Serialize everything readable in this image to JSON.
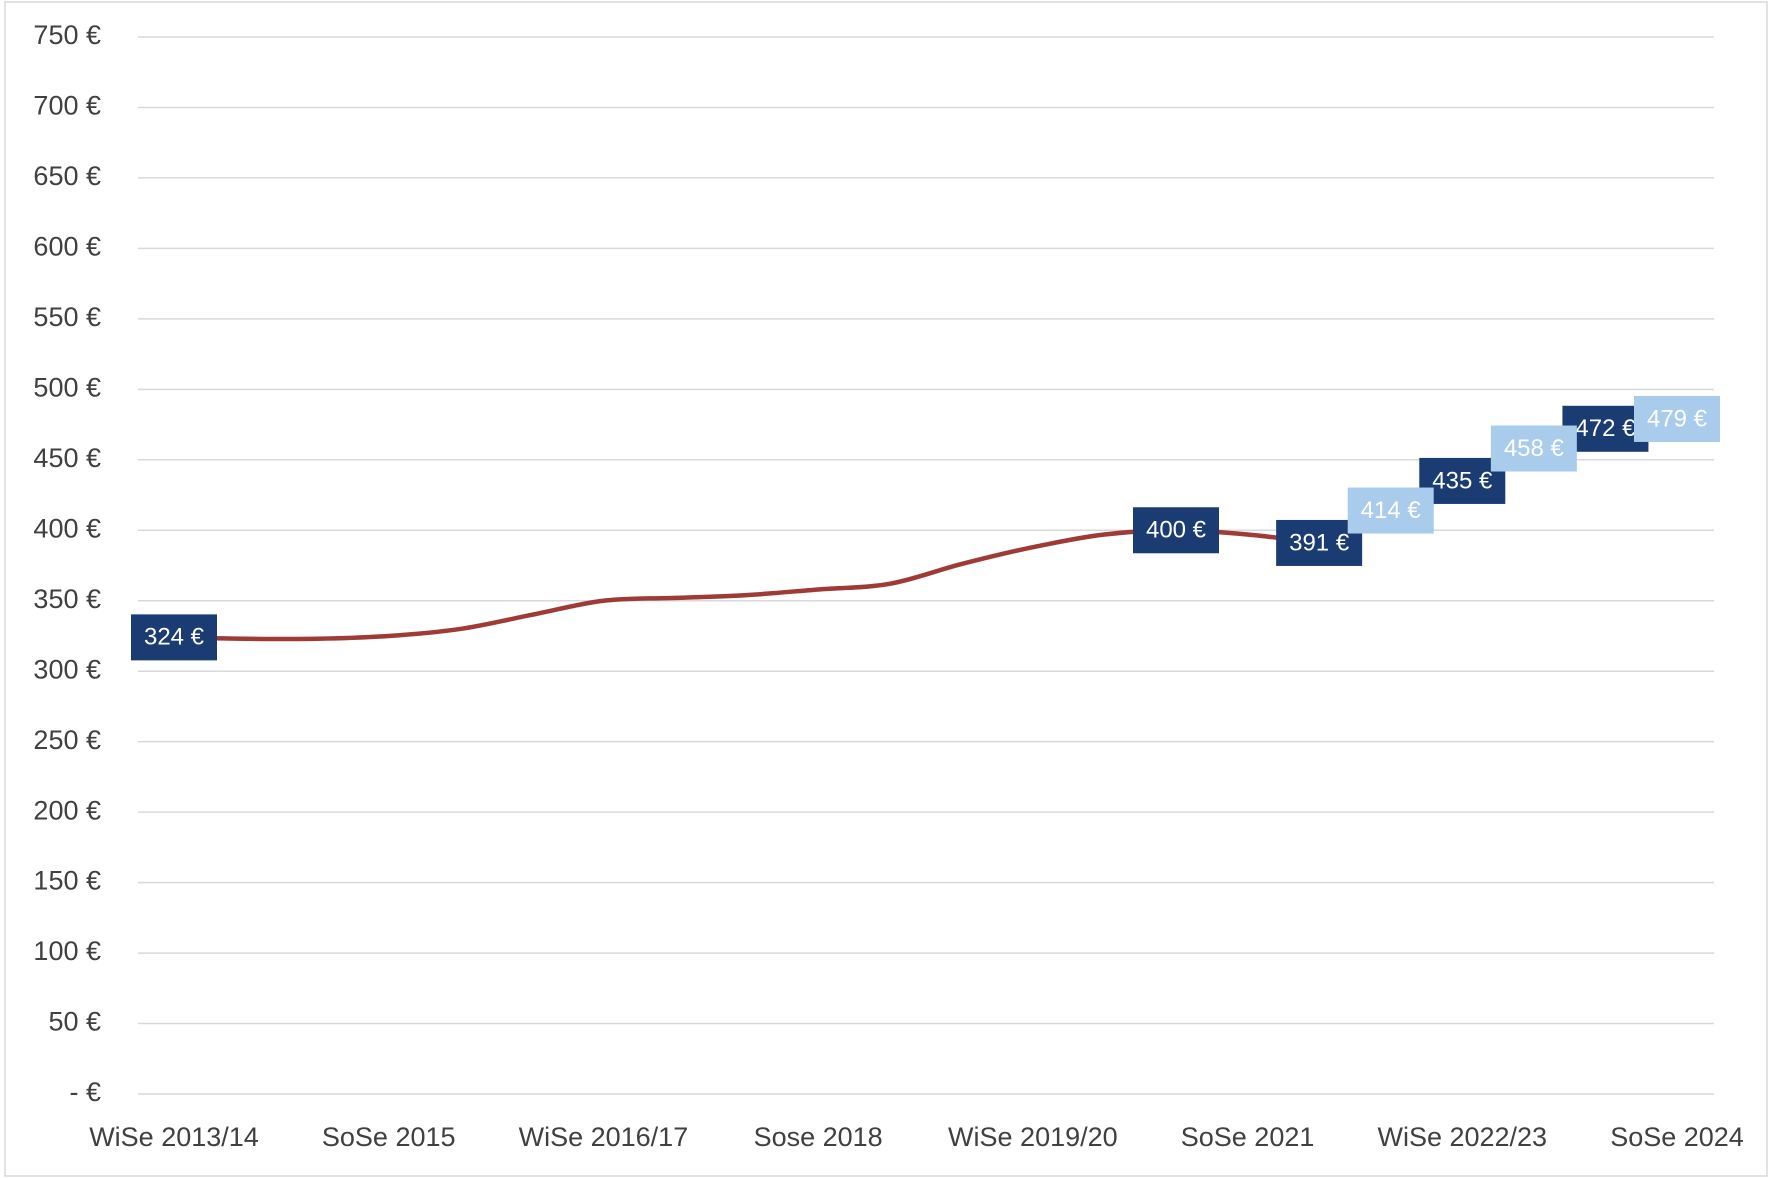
{
  "chart_data": {
    "type": "line",
    "categories": [
      "WiSe 2013/14",
      null,
      null,
      "SoSe 2015",
      null,
      null,
      "WiSe 2016/17",
      null,
      null,
      "Sose 2018",
      null,
      null,
      "WiSe 2019/20",
      null,
      null,
      "SoSe 2021",
      null,
      null,
      "WiSe 2022/23",
      null,
      null,
      "SoSe 2024"
    ],
    "series": [
      {
        "color": "#9e3b37",
        "label_color": "#1b3c73",
        "label_text_color": "#ffffff",
        "line": true,
        "values": [
          324,
          323,
          323,
          325,
          330,
          340,
          350,
          352,
          354,
          358,
          362,
          376,
          388,
          397,
          400,
          397,
          391,
          null,
          null,
          null,
          null,
          null
        ],
        "value_labels": [
          "324 €",
          null,
          null,
          null,
          null,
          null,
          null,
          null,
          null,
          null,
          null,
          null,
          null,
          null,
          "400 €",
          null,
          "391 €",
          null,
          null,
          null,
          null,
          null
        ]
      },
      {
        "label_color": "#1b3c73",
        "label_text_color": "#ffffff",
        "line": false,
        "values": [
          null,
          null,
          null,
          null,
          null,
          null,
          null,
          null,
          null,
          null,
          null,
          null,
          null,
          null,
          null,
          null,
          null,
          null,
          435,
          null,
          472,
          null
        ],
        "value_labels": [
          null,
          null,
          null,
          null,
          null,
          null,
          null,
          null,
          null,
          null,
          null,
          null,
          null,
          null,
          null,
          null,
          null,
          null,
          "435 €",
          null,
          "472 €",
          null
        ]
      },
      {
        "label_color": "#a9cbec",
        "label_text_color": "#ffffff",
        "line": false,
        "values": [
          null,
          null,
          null,
          null,
          null,
          null,
          null,
          null,
          null,
          null,
          null,
          null,
          null,
          null,
          null,
          null,
          null,
          414,
          null,
          458,
          null,
          479
        ],
        "value_labels": [
          null,
          null,
          null,
          null,
          null,
          null,
          null,
          null,
          null,
          null,
          null,
          null,
          null,
          null,
          null,
          null,
          null,
          "414 €",
          null,
          "458 €",
          null,
          "479 €"
        ]
      }
    ],
    "ylim": [
      0,
      750
    ],
    "yticks": [
      {
        "value": 0,
        "label": "-  €"
      },
      {
        "value": 50,
        "label": "50 €"
      },
      {
        "value": 100,
        "label": "100 €"
      },
      {
        "value": 150,
        "label": "150 €"
      },
      {
        "value": 200,
        "label": "200 €"
      },
      {
        "value": 250,
        "label": "250 €"
      },
      {
        "value": 300,
        "label": "300 €"
      },
      {
        "value": 350,
        "label": "350 €"
      },
      {
        "value": 400,
        "label": "400 €"
      },
      {
        "value": 450,
        "label": "450 €"
      },
      {
        "value": 500,
        "label": "500 €"
      },
      {
        "value": 550,
        "label": "550 €"
      },
      {
        "value": 600,
        "label": "600 €"
      },
      {
        "value": 650,
        "label": "650 €"
      },
      {
        "value": 700,
        "label": "700 €"
      },
      {
        "value": 750,
        "label": "750 €"
      }
    ],
    "grid": true
  }
}
